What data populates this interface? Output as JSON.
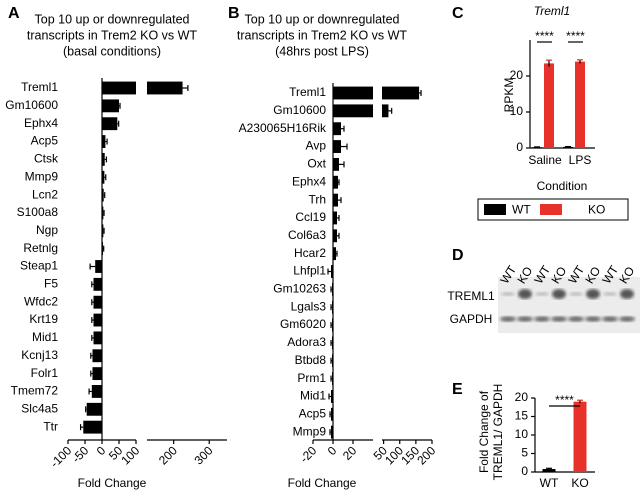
{
  "chart_data": [
    {
      "type": "hbar-broken",
      "panel": "A",
      "title_lines": [
        "Top 10 up or downregulated",
        "transcripts  in Trem2 KO vs WT",
        "(basal conditions)"
      ],
      "categories": [
        "Treml1",
        "Gm10600",
        "Ephx4",
        "Acp5",
        "Ctsk",
        "Mmp9",
        "Lcn2",
        "S100a8",
        "Ngp",
        "Retnlg",
        "Steap1",
        "F5",
        "Wfdc2",
        "Krt19",
        "Mid1",
        "Kcnj13",
        "Folr1",
        "Tmem72",
        "Slc4a5",
        "Ttr"
      ],
      "values": [
        225,
        50,
        45,
        10,
        8,
        7,
        5,
        4,
        4,
        3,
        -20,
        -25,
        -25,
        -25,
        -25,
        -28,
        -28,
        -30,
        -45,
        -55
      ],
      "errors": [
        15,
        3,
        4,
        5,
        5,
        4,
        3,
        2,
        2,
        2,
        15,
        5,
        5,
        5,
        5,
        5,
        5,
        8,
        3,
        8
      ],
      "color": "#000000",
      "xlabel": "Fold Change",
      "xlim": [
        -100,
        350
      ],
      "xbreak": [
        100,
        125
      ],
      "xticks": [
        -100,
        -50,
        0,
        50,
        100,
        200,
        300
      ]
    },
    {
      "type": "hbar-broken",
      "panel": "B",
      "title_lines": [
        "Top 10 up or downregulated",
        "transcripts in Trem2 KO vs WT",
        "(48hrs post LPS)"
      ],
      "categories": [
        "Treml1",
        "Gm10600",
        "A230065H16Rik",
        "Avp",
        "Oxt",
        "Ephx4",
        "Trh",
        "Ccl19",
        "Col6a3",
        "Hcar2",
        "Lhfpl1",
        "Gm10263",
        "Lgals3",
        "Gm6020",
        "Adora3",
        "Btbd8",
        "Prm1",
        "Mid1",
        "Acp5",
        "Mmp9"
      ],
      "values": [
        160,
        65,
        8,
        8,
        6,
        5,
        5,
        4,
        4,
        3,
        -2,
        -1,
        -1,
        -1,
        -1,
        -1,
        -1,
        -2,
        -2,
        -2
      ],
      "errors": [
        6,
        10,
        3,
        6,
        5,
        1,
        3,
        2,
        2,
        1,
        3,
        1,
        1,
        1,
        1,
        1,
        1,
        2,
        1,
        1
      ],
      "color": "#000000",
      "xlabel": "Fold Change",
      "xlim": [
        -20,
        200
      ],
      "xbreak": [
        40,
        45
      ],
      "xticks": [
        -20,
        0,
        20,
        50,
        100,
        150,
        200
      ]
    },
    {
      "type": "grouped-bar",
      "panel": "C",
      "title": "Treml1",
      "ylabel": "RPKM",
      "xlabel": "Condition",
      "categories": [
        "Saline",
        "LPS"
      ],
      "series": [
        {
          "name": "WT",
          "color": "#000000",
          "values": [
            0.2,
            0.3
          ],
          "errors": [
            0.1,
            0.1
          ]
        },
        {
          "name": "KO",
          "color": "#e8312a",
          "values": [
            23.5,
            24
          ],
          "errors": [
            0.9,
            0.5
          ]
        }
      ],
      "significance": [
        "****",
        "****"
      ],
      "ylim": [
        0,
        30
      ],
      "yticks": [
        0,
        10,
        20
      ]
    },
    {
      "type": "blot",
      "panel": "D",
      "lanes": [
        "WT",
        "KO",
        "WT",
        "KO",
        "WT",
        "KO",
        "WT",
        "KO"
      ],
      "bands": [
        "TREML1",
        "GAPDH"
      ]
    },
    {
      "type": "bar",
      "panel": "E",
      "ylabel_lines": [
        "Fold Change of",
        "TREML1/ GAPDH"
      ],
      "categories": [
        "WT",
        "KO"
      ],
      "values": [
        0.8,
        19
      ],
      "errors": [
        0.2,
        0.4
      ],
      "colors": [
        "#000000",
        "#e8312a"
      ],
      "significance": "****",
      "ylim": [
        0,
        20
      ],
      "yticks": [
        0,
        5,
        10,
        15,
        20
      ]
    }
  ]
}
